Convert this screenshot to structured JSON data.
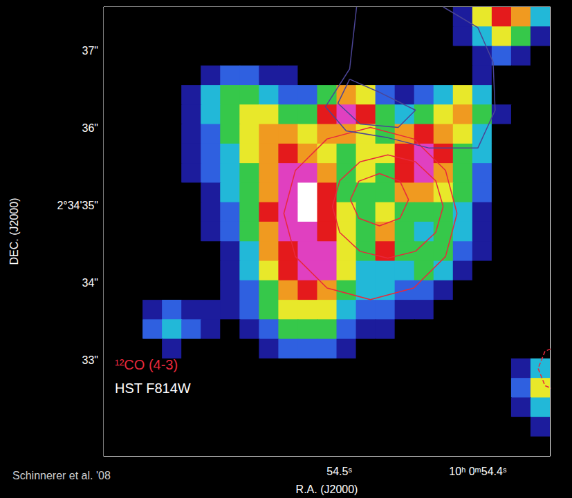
{
  "chart_data": {
    "type": "heatmap",
    "xlabel": "R.A. (J2000)",
    "ylabel": "DEC. (J2000)",
    "xlim": [
      54.67,
      54.348
    ],
    "ylim": [
      31.762,
      37.57
    ],
    "xticks": [
      {
        "value": 54.5,
        "label": "54.5ˢ"
      },
      {
        "value": 54.4,
        "label": "10ʰ 0ᵐ54.4ˢ"
      }
    ],
    "yticks": [
      {
        "value": 33,
        "label": "33\""
      },
      {
        "value": 34,
        "label": "34\""
      },
      {
        "value": 35,
        "label": "2°34'35\""
      },
      {
        "value": 36,
        "label": "36\""
      },
      {
        "value": 37,
        "label": "37\""
      }
    ],
    "grid": false,
    "annotations": [
      "Schinnerer et al. '08"
    ],
    "image": {
      "name": "HST F814W",
      "color_range": [
        0,
        9
      ],
      "x": [
        54.663,
        54.649,
        54.635,
        54.621,
        54.607,
        54.593,
        54.579,
        54.565,
        54.551,
        54.537,
        54.523,
        54.509,
        54.495,
        54.481,
        54.467,
        54.453,
        54.439,
        54.425,
        54.411,
        54.397,
        54.383,
        54.369,
        54.355
      ],
      "y": [
        37.444,
        37.191,
        36.938,
        36.686,
        36.433,
        36.181,
        35.928,
        35.675,
        35.423,
        35.17,
        34.917,
        34.665,
        34.412,
        34.159,
        33.907,
        33.654,
        33.402,
        33.149,
        32.896,
        32.644,
        32.391,
        32.138,
        31.886
      ],
      "values": [
        [
          0,
          0,
          0,
          0,
          0,
          0,
          0,
          0,
          0,
          0,
          0,
          0,
          0,
          0,
          0,
          0,
          0,
          0,
          1,
          5,
          7,
          6,
          3
        ],
        [
          0,
          0,
          0,
          0,
          0,
          0,
          0,
          0,
          0,
          0,
          0,
          0,
          0,
          0,
          0,
          0,
          0,
          0,
          1,
          3,
          5,
          4,
          1
        ],
        [
          0,
          0,
          0,
          0,
          0,
          0,
          0,
          0,
          0,
          0,
          0,
          0,
          0,
          0,
          0,
          0,
          0,
          0,
          0,
          1,
          2,
          1,
          0
        ],
        [
          0,
          0,
          0,
          0,
          0,
          1,
          2,
          2,
          1,
          1,
          0,
          0,
          0,
          0,
          0,
          0,
          0,
          0,
          0,
          1,
          0,
          0,
          0
        ],
        [
          0,
          0,
          0,
          0,
          1,
          3,
          4,
          4,
          3,
          2,
          2,
          4,
          6,
          5,
          2,
          1,
          2,
          3,
          5,
          3,
          0,
          0,
          0
        ],
        [
          0,
          0,
          0,
          0,
          1,
          3,
          4,
          5,
          5,
          4,
          4,
          7,
          8,
          7,
          4,
          3,
          4,
          5,
          6,
          4,
          1,
          0,
          0
        ],
        [
          0,
          0,
          0,
          0,
          1,
          2,
          4,
          5,
          6,
          6,
          5,
          6,
          6,
          5,
          4,
          6,
          7,
          6,
          5,
          3,
          0,
          0,
          0
        ],
        [
          0,
          0,
          0,
          0,
          1,
          2,
          3,
          5,
          6,
          7,
          6,
          5,
          4,
          5,
          5,
          7,
          8,
          7,
          4,
          3,
          0,
          0,
          0
        ],
        [
          0,
          0,
          0,
          0,
          1,
          2,
          3,
          4,
          6,
          8,
          8,
          6,
          4,
          5,
          4,
          7,
          8,
          6,
          4,
          2,
          0,
          0,
          0
        ],
        [
          0,
          0,
          0,
          0,
          0,
          1,
          3,
          4,
          6,
          8,
          9,
          7,
          4,
          4,
          4,
          6,
          6,
          5,
          4,
          2,
          0,
          0,
          0
        ],
        [
          0,
          0,
          0,
          0,
          0,
          1,
          2,
          4,
          7,
          8,
          9,
          7,
          5,
          4,
          5,
          4,
          4,
          4,
          3,
          1,
          0,
          0,
          0
        ],
        [
          0,
          0,
          0,
          0,
          0,
          1,
          2,
          4,
          6,
          8,
          8,
          7,
          5,
          4,
          6,
          4,
          3,
          4,
          3,
          1,
          0,
          0,
          0
        ],
        [
          0,
          0,
          0,
          0,
          0,
          0,
          1,
          3,
          6,
          7,
          8,
          8,
          5,
          4,
          7,
          4,
          4,
          4,
          2,
          1,
          0,
          0,
          0
        ],
        [
          0,
          0,
          0,
          0,
          0,
          0,
          1,
          3,
          5,
          7,
          8,
          8,
          5,
          3,
          3,
          3,
          4,
          3,
          1,
          0,
          0,
          0,
          0
        ],
        [
          0,
          0,
          0,
          0,
          0,
          0,
          1,
          2,
          4,
          6,
          7,
          6,
          4,
          3,
          3,
          2,
          2,
          1,
          0,
          0,
          0,
          0,
          0
        ],
        [
          0,
          0,
          1,
          2,
          1,
          1,
          1,
          2,
          4,
          5,
          5,
          5,
          3,
          2,
          2,
          1,
          1,
          0,
          0,
          0,
          0,
          0,
          0
        ],
        [
          0,
          0,
          2,
          3,
          2,
          1,
          0,
          1,
          2,
          4,
          4,
          4,
          2,
          1,
          1,
          0,
          0,
          0,
          0,
          0,
          0,
          0,
          0
        ],
        [
          0,
          0,
          0,
          1,
          0,
          0,
          0,
          0,
          1,
          2,
          2,
          2,
          1,
          0,
          0,
          0,
          0,
          0,
          0,
          0,
          0,
          0,
          0
        ],
        [
          0,
          0,
          0,
          0,
          0,
          0,
          0,
          0,
          0,
          0,
          0,
          0,
          0,
          0,
          0,
          0,
          0,
          0,
          0,
          0,
          0,
          1,
          3
        ],
        [
          0,
          0,
          0,
          0,
          0,
          0,
          0,
          0,
          0,
          0,
          0,
          0,
          0,
          0,
          0,
          0,
          0,
          0,
          0,
          0,
          0,
          2,
          5
        ],
        [
          0,
          0,
          0,
          0,
          0,
          0,
          0,
          0,
          0,
          0,
          0,
          0,
          0,
          0,
          0,
          0,
          0,
          0,
          0,
          0,
          0,
          1,
          3
        ],
        [
          0,
          0,
          0,
          0,
          0,
          0,
          0,
          0,
          0,
          0,
          0,
          0,
          0,
          0,
          0,
          0,
          0,
          0,
          0,
          0,
          0,
          0,
          1
        ],
        [
          0,
          0,
          0,
          0,
          0,
          0,
          0,
          0,
          0,
          0,
          0,
          0,
          0,
          0,
          0,
          0,
          0,
          0,
          0,
          0,
          0,
          0,
          0
        ]
      ]
    },
    "series": [
      {
        "name": "¹²CO (4-3)",
        "type": "line",
        "color": "#e8283c",
        "line_style": "solid",
        "contours": [
          [
            [
              54.415,
              34.898
            ],
            [
              54.4233,
              35.454
            ],
            [
              54.4463,
              35.862
            ],
            [
              54.4775,
              36.011
            ],
            [
              54.5088,
              35.862
            ],
            [
              54.5317,
              35.454
            ],
            [
              54.54,
              34.898
            ],
            [
              54.5317,
              34.341
            ],
            [
              54.5088,
              33.933
            ],
            [
              54.4775,
              33.784
            ],
            [
              54.4463,
              33.933
            ],
            [
              54.4233,
              34.341
            ],
            [
              54.415,
              34.898
            ]
          ],
          [
            [
              54.425,
              34.987
            ],
            [
              54.4304,
              35.321
            ],
            [
              54.445,
              35.566
            ],
            [
              54.465,
              35.655
            ],
            [
              54.485,
              35.566
            ],
            [
              54.4997,
              35.321
            ],
            [
              54.505,
              34.987
            ],
            [
              54.4997,
              34.653
            ],
            [
              54.485,
              34.408
            ],
            [
              54.465,
              34.319
            ],
            [
              54.445,
              34.408
            ],
            [
              54.4304,
              34.653
            ],
            [
              54.425,
              34.987
            ]
          ],
          [
            [
              54.45,
              35.076
            ],
            [
              54.4562,
              35.315
            ],
            [
              54.471,
              35.414
            ],
            [
              54.4859,
              35.315
            ],
            [
              54.492,
              35.076
            ],
            [
              54.4859,
              34.836
            ],
            [
              54.471,
              34.737
            ],
            [
              54.4562,
              34.836
            ],
            [
              54.45,
              35.076
            ]
          ]
        ]
      },
      {
        "type": "line",
        "color": "#e8283c",
        "line_style": "dashed",
        "contours": [
          [
            [
              54.339,
              33.205
            ],
            [
              54.3515,
              33.116
            ],
            [
              54.3565,
              32.893
            ],
            [
              54.3515,
              32.67
            ],
            [
              54.339,
              32.581
            ]
          ]
        ]
      },
      {
        "type": "line",
        "color": "#4b4596",
        "line_style": "solid",
        "contours": [
          [
            [
              54.4875,
              37.57
            ],
            [
              54.4925,
              36.768
            ],
            [
              54.51,
              36.278
            ],
            [
              54.495,
              35.967
            ],
            [
              54.465,
              35.878
            ],
            [
              54.435,
              35.744
            ],
            [
              54.4,
              35.744
            ],
            [
              54.3875,
              36.234
            ],
            [
              54.389,
              36.857
            ],
            [
              54.4,
              37.303
            ],
            [
              54.425,
              37.57
            ]
          ],
          [
            [
              54.4925,
              36.635
            ],
            [
              54.47,
              36.457
            ],
            [
              54.445,
              36.234
            ],
            [
              54.4575,
              36.011
            ],
            [
              54.485,
              36.056
            ],
            [
              54.501,
              36.323
            ],
            [
              54.4925,
              36.635
            ]
          ]
        ]
      }
    ]
  }
}
